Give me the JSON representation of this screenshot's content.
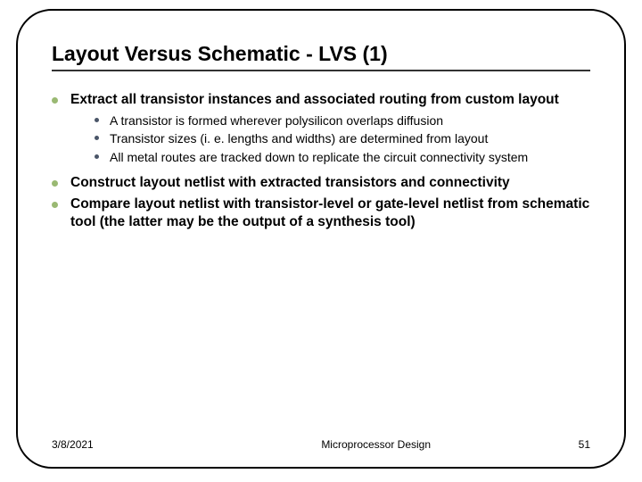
{
  "slide": {
    "title": "Layout Versus Schematic - LVS (1)",
    "bullets": [
      {
        "text": "Extract all transistor instances and associated routing from custom layout",
        "sub": [
          {
            "text": "A transistor is formed wherever polysilicon overlaps diffusion"
          },
          {
            "text": "Transistor sizes (i. e. lengths and widths) are determined from layout"
          },
          {
            "text": "All metal routes are tracked down to replicate the circuit connectivity system"
          }
        ]
      },
      {
        "text": "Construct layout netlist with extracted transistors and connectivity",
        "sub": []
      },
      {
        "text": "Compare layout netlist with transistor-level or gate-level netlist from schematic tool (the latter may be the output of a synthesis tool)",
        "sub": []
      }
    ],
    "footer": {
      "date": "3/8/2021",
      "title": "Microprocessor Design",
      "page": "51"
    },
    "style": {
      "l1_marker_color": "#9ab973",
      "l2_marker_color": "#4a5568",
      "border_color": "#000000",
      "background": "#ffffff"
    }
  }
}
